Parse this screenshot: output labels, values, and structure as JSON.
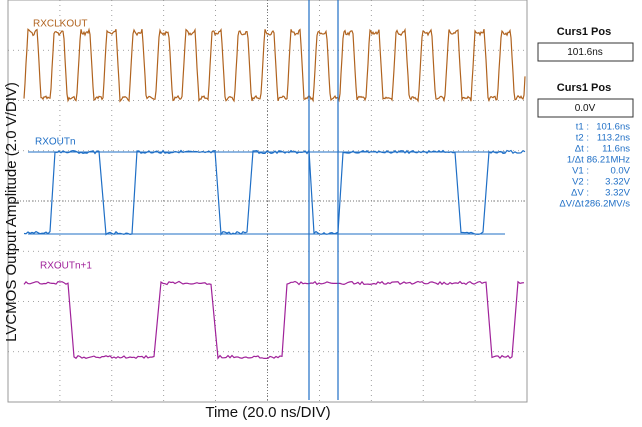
{
  "screen": {
    "channels": [
      "RXCLKOUT",
      "RXOUTn",
      "RXOUTn+1"
    ],
    "x_label": "Time (20.0 ns/DIV)",
    "y_label": "LVCMOS Output Amplitude (2.0 V/DIV)"
  },
  "panel": {
    "cursor_boxes": [
      {
        "title": "Curs1 Pos",
        "value": "101.6ns"
      },
      {
        "title": "Curs1 Pos",
        "value": "0.0V"
      }
    ],
    "readouts": [
      [
        "t1 :",
        "101.6ns"
      ],
      [
        "t2 :",
        "113.2ns"
      ],
      [
        "Δt :",
        "11.6ns"
      ],
      [
        "1/Δt :",
        "86.21MHz"
      ],
      [
        "V1 :",
        "0.0V"
      ],
      [
        "V2 :",
        "3.32V"
      ],
      [
        "ΔV :",
        "3.32V"
      ],
      [
        "ΔV/Δt :",
        "286.2MV/s"
      ]
    ]
  }
}
